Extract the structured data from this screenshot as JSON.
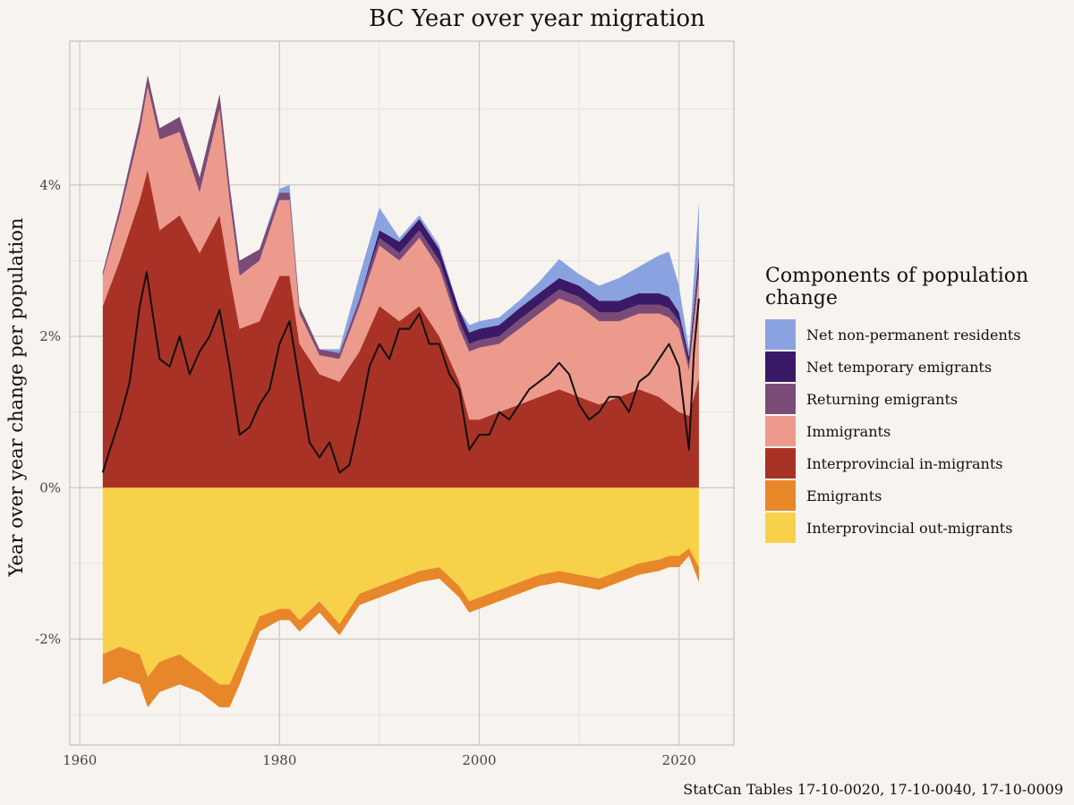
{
  "chart_data": {
    "type": "area",
    "title": "BC Year over year migration",
    "ylabel": "Year over year change per population",
    "xlabel": "",
    "caption": "StatCan Tables 17-10-0020, 17-10-0040, 17-10-0009",
    "xlim": [
      1959,
      2025.5
    ],
    "ylim": [
      -3.4,
      5.9
    ],
    "x_ticks": [
      1960,
      1980,
      2000,
      2020
    ],
    "y_ticks": [
      -2,
      0,
      2,
      4
    ],
    "y_tick_labels": [
      "-2%",
      "0%",
      "2%",
      "4%"
    ],
    "grid": true,
    "legend_position": "right",
    "legend_title": "Components of population change",
    "x": [
      1962.3,
      1964,
      1966,
      1966.8,
      1968,
      1970,
      1972,
      1974,
      1975,
      1976,
      1978,
      1980,
      1981,
      1982,
      1984,
      1986,
      1988,
      1990,
      1992,
      1994,
      1996,
      1998,
      1999,
      2000,
      2002,
      2004,
      2006,
      2008,
      2010,
      2012,
      2014,
      2016,
      2018,
      2019,
      2020,
      2021,
      2022
    ],
    "positive_series": [
      {
        "name": "Interprovincial in-migrants",
        "color": "#a93226",
        "values": [
          2.4,
          3.0,
          3.8,
          4.2,
          3.4,
          3.6,
          3.1,
          3.6,
          2.8,
          2.1,
          2.2,
          2.8,
          2.8,
          1.9,
          1.5,
          1.4,
          1.8,
          2.4,
          2.2,
          2.4,
          2.0,
          1.4,
          0.9,
          0.9,
          1.0,
          1.1,
          1.2,
          1.3,
          1.2,
          1.1,
          1.2,
          1.3,
          1.2,
          1.1,
          1.0,
          0.95,
          1.45
        ]
      },
      {
        "name": "Immigrants",
        "color": "#ec9a8c",
        "values": [
          0.4,
          0.6,
          0.9,
          1.1,
          1.2,
          1.1,
          0.8,
          1.4,
          1.0,
          0.7,
          0.8,
          1.0,
          1.0,
          0.4,
          0.25,
          0.3,
          0.6,
          0.8,
          0.8,
          0.9,
          0.9,
          0.7,
          0.9,
          0.95,
          0.9,
          1.0,
          1.1,
          1.2,
          1.2,
          1.1,
          1.0,
          1.0,
          1.1,
          1.15,
          1.1,
          0.6,
          1.35
        ]
      },
      {
        "name": "Returning emigrants",
        "color": "#7b4b78",
        "values": [
          0.05,
          0.1,
          0.15,
          0.15,
          0.15,
          0.2,
          0.2,
          0.2,
          0.2,
          0.2,
          0.15,
          0.1,
          0.1,
          0.1,
          0.08,
          0.08,
          0.1,
          0.1,
          0.1,
          0.1,
          0.1,
          0.1,
          0.1,
          0.1,
          0.1,
          0.12,
          0.12,
          0.12,
          0.12,
          0.12,
          0.12,
          0.12,
          0.12,
          0.12,
          0.1,
          0.08,
          0.12
        ]
      },
      {
        "name": "Net temporary emigrants",
        "color": "#3a1a66",
        "values": [
          0.0,
          0.0,
          0.0,
          0.0,
          0.0,
          0.0,
          0.0,
          0.0,
          0.0,
          0.0,
          0.0,
          0.0,
          0.0,
          0.0,
          0.0,
          0.0,
          0.0,
          0.1,
          0.15,
          0.15,
          0.15,
          0.15,
          0.15,
          0.15,
          0.15,
          0.15,
          0.15,
          0.15,
          0.15,
          0.15,
          0.15,
          0.15,
          0.15,
          0.15,
          0.12,
          0.1,
          0.15
        ]
      },
      {
        "name": "Net non-permanent residents",
        "color": "#8aa3e0",
        "values": [
          0.0,
          0.0,
          0.0,
          0.0,
          0.0,
          0.0,
          0.0,
          0.0,
          0.0,
          0.0,
          0.0,
          0.05,
          0.1,
          0.0,
          0.0,
          0.05,
          0.3,
          0.3,
          0.05,
          0.05,
          0.05,
          0.0,
          0.1,
          0.1,
          0.1,
          0.1,
          0.15,
          0.25,
          0.15,
          0.2,
          0.3,
          0.35,
          0.5,
          0.6,
          0.35,
          0.1,
          0.7
        ]
      }
    ],
    "negative_series": [
      {
        "name": "Interprovincial out-migrants",
        "color": "#f8d14a",
        "values": [
          -2.2,
          -2.1,
          -2.2,
          -2.5,
          -2.3,
          -2.2,
          -2.4,
          -2.6,
          -2.6,
          -2.3,
          -1.7,
          -1.6,
          -1.6,
          -1.75,
          -1.5,
          -1.8,
          -1.4,
          -1.3,
          -1.2,
          -1.1,
          -1.05,
          -1.3,
          -1.5,
          -1.45,
          -1.35,
          -1.25,
          -1.15,
          -1.1,
          -1.15,
          -1.2,
          -1.1,
          -1.0,
          -0.95,
          -0.9,
          -0.9,
          -0.8,
          -1.05
        ]
      },
      {
        "name": "Emigrants",
        "color": "#e8872a",
        "values": [
          -0.4,
          -0.4,
          -0.4,
          -0.4,
          -0.4,
          -0.4,
          -0.3,
          -0.3,
          -0.3,
          -0.3,
          -0.2,
          -0.15,
          -0.15,
          -0.15,
          -0.15,
          -0.15,
          -0.15,
          -0.15,
          -0.15,
          -0.15,
          -0.15,
          -0.15,
          -0.15,
          -0.15,
          -0.15,
          -0.15,
          -0.15,
          -0.15,
          -0.15,
          -0.15,
          -0.15,
          -0.15,
          -0.15,
          -0.15,
          -0.15,
          -0.1,
          -0.2
        ]
      }
    ],
    "net_line": {
      "color": "#111111",
      "x": [
        1962.3,
        1963,
        1964,
        1965,
        1966,
        1966.7,
        1967.3,
        1968,
        1969,
        1970,
        1971,
        1972,
        1973,
        1974,
        1975,
        1976,
        1977,
        1978,
        1979,
        1980,
        1981,
        1982,
        1983,
        1984,
        1985,
        1986,
        1987,
        1988,
        1989,
        1990,
        1991,
        1992,
        1993,
        1994,
        1995,
        1996,
        1997,
        1998,
        1999,
        2000,
        2001,
        2002,
        2003,
        2004,
        2005,
        2006,
        2007,
        2008,
        2009,
        2010,
        2011,
        2012,
        2013,
        2014,
        2015,
        2016,
        2017,
        2018,
        2019,
        2020,
        2021,
        2021.5,
        2022
      ],
      "values": [
        0.2,
        0.5,
        0.9,
        1.4,
        2.4,
        2.85,
        2.3,
        1.7,
        1.6,
        2.0,
        1.5,
        1.8,
        2.0,
        2.35,
        1.6,
        0.7,
        0.8,
        1.1,
        1.3,
        1.9,
        2.2,
        1.4,
        0.6,
        0.4,
        0.6,
        0.2,
        0.3,
        0.9,
        1.6,
        1.9,
        1.7,
        2.1,
        2.1,
        2.3,
        1.9,
        1.9,
        1.5,
        1.3,
        0.5,
        0.7,
        0.7,
        1.0,
        0.9,
        1.1,
        1.3,
        1.4,
        1.5,
        1.65,
        1.5,
        1.1,
        0.9,
        1.0,
        1.2,
        1.2,
        1.0,
        1.4,
        1.5,
        1.7,
        1.9,
        1.6,
        0.5,
        1.8,
        2.5
      ]
    }
  }
}
